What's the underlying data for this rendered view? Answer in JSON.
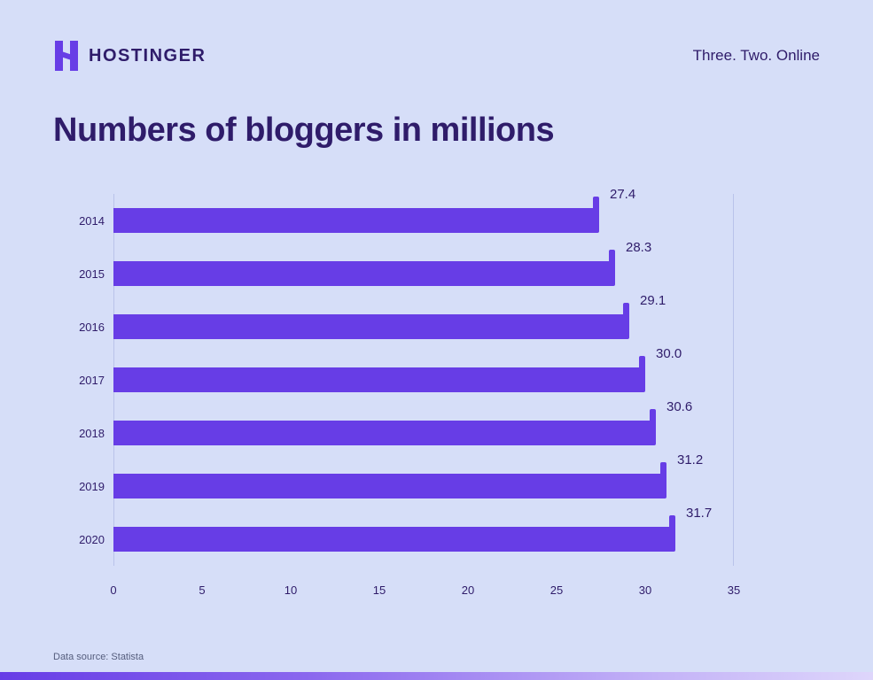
{
  "page": {
    "background_color": "#d6def8",
    "accent_color": "#673de6",
    "text_color": "#2f1c6a"
  },
  "header": {
    "brand": "HOSTINGER",
    "tagline": "Three. Two. Online",
    "logo_icon": "hostinger-h-logo"
  },
  "title": "Numbers of bloggers in millions",
  "chart_data": {
    "type": "bar",
    "orientation": "horizontal",
    "title": "Numbers of bloggers in millions",
    "categories": [
      "2014",
      "2015",
      "2016",
      "2017",
      "2018",
      "2019",
      "2020"
    ],
    "values": [
      27.4,
      28.3,
      29.1,
      30.0,
      30.6,
      31.2,
      31.7
    ],
    "value_labels": [
      "27.4",
      "28.3",
      "29.1",
      "30.0",
      "30.6",
      "31.2",
      "31.7"
    ],
    "x_ticks": [
      0,
      5,
      10,
      15,
      20,
      25,
      30,
      35
    ],
    "xlim": [
      0,
      35
    ],
    "bar_color": "#673de6",
    "grid": false,
    "legend": false
  },
  "footer": {
    "source": "Data source: Statista"
  }
}
